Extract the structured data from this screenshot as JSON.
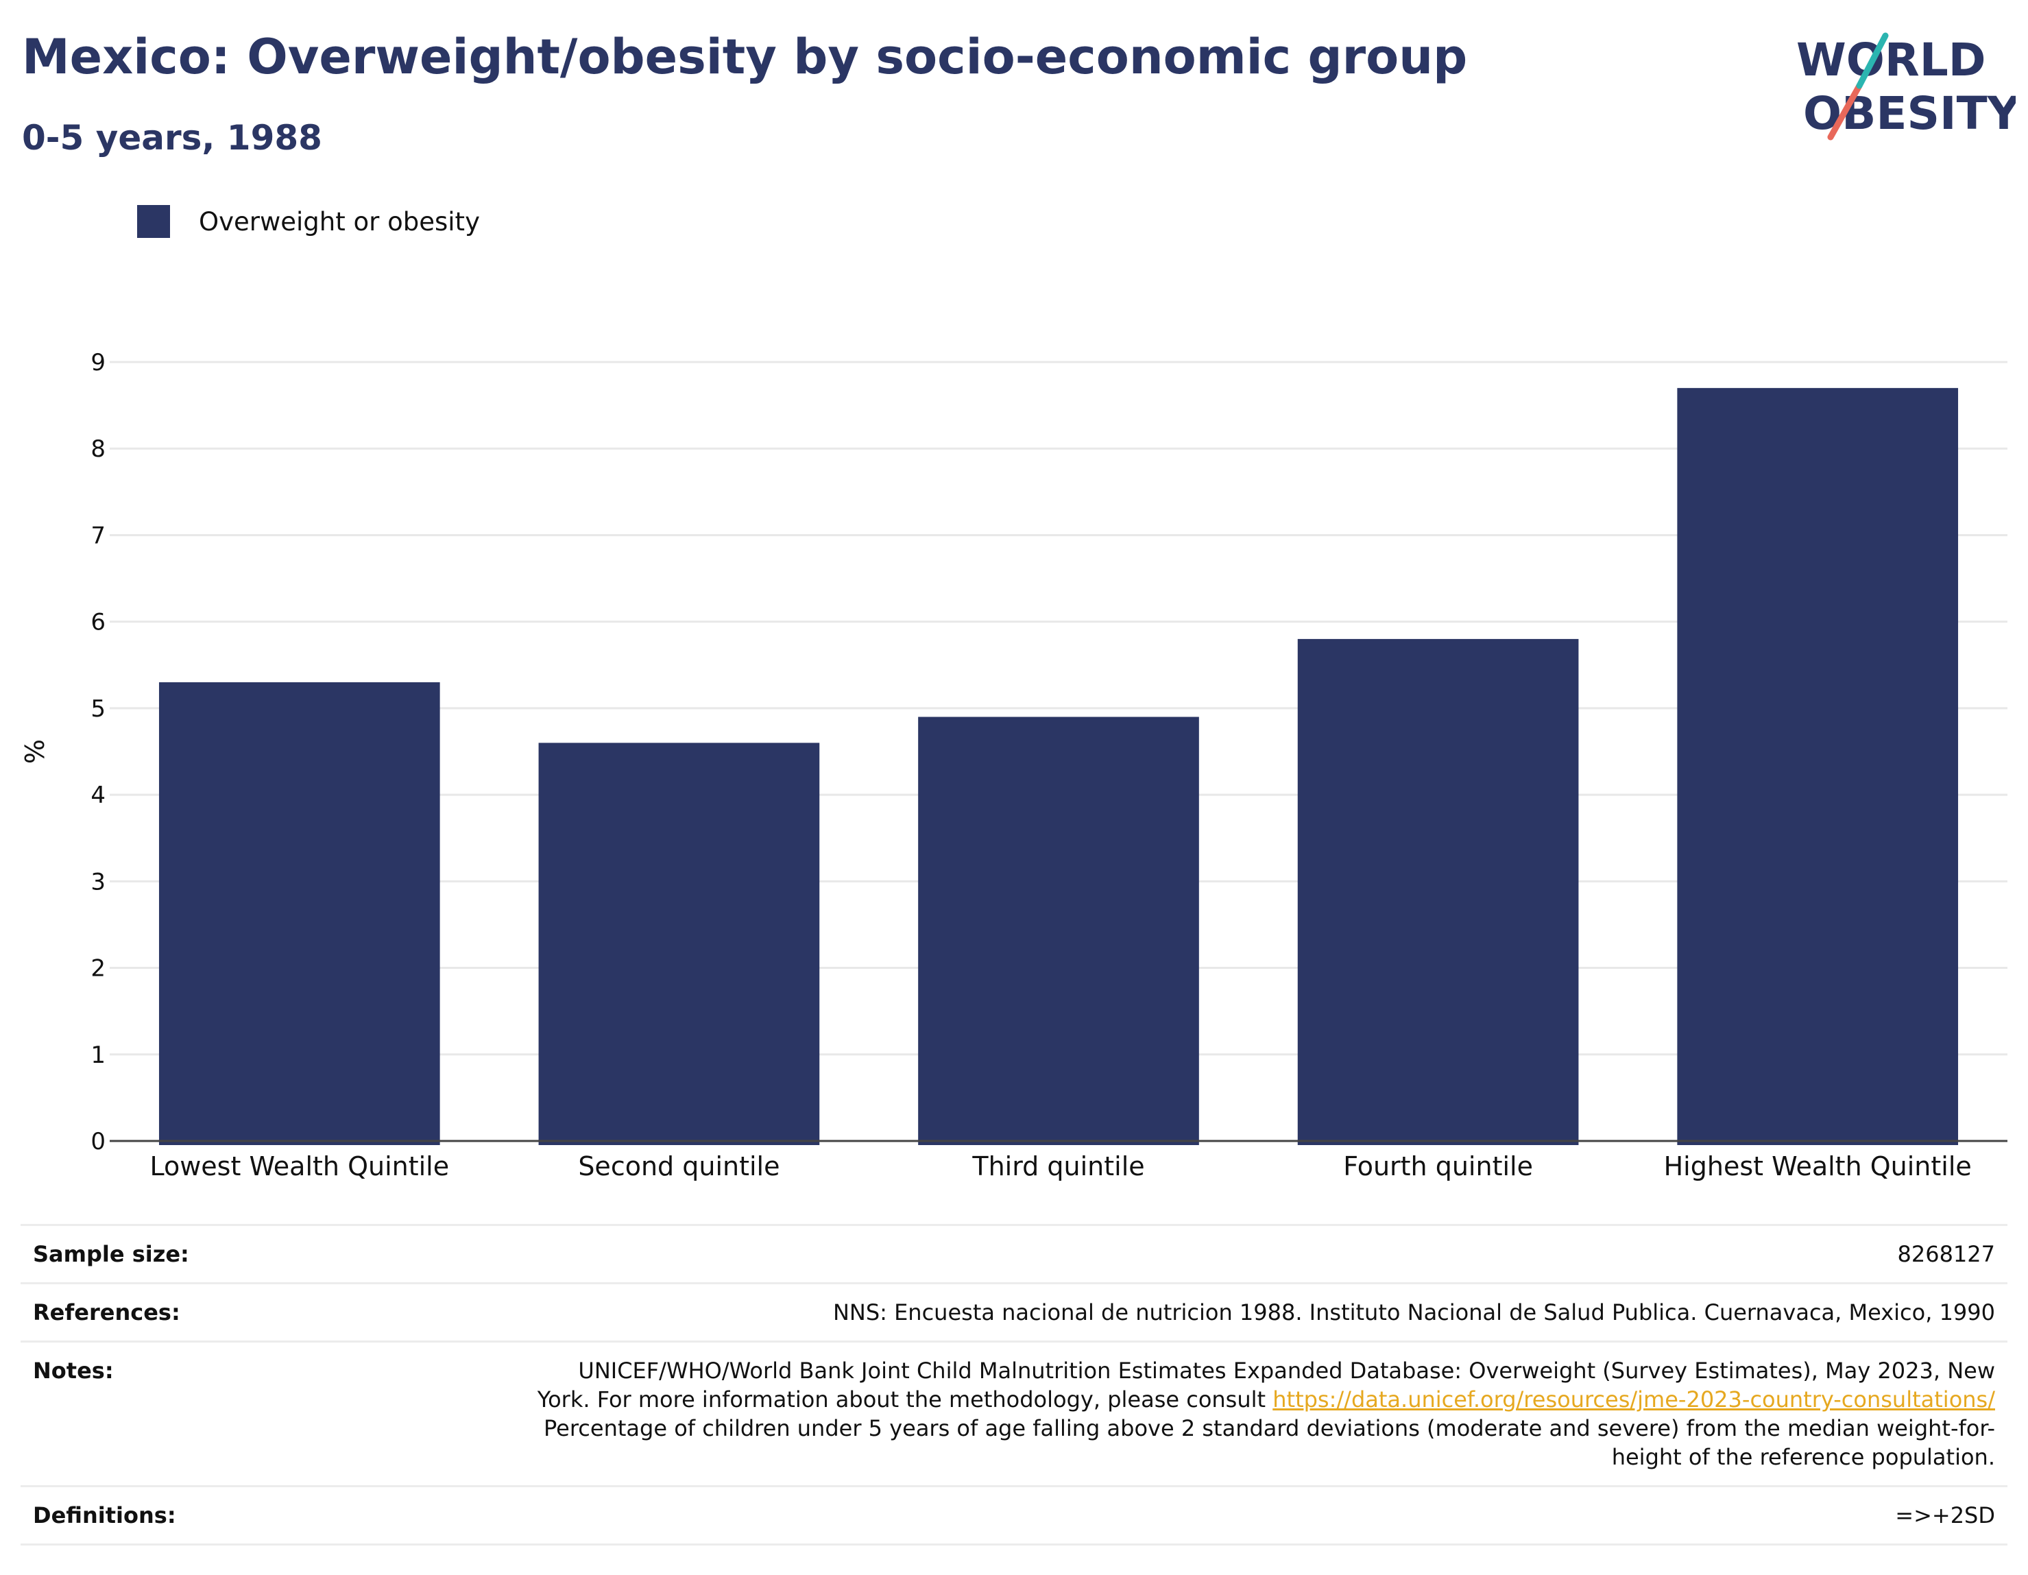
{
  "header": {
    "title": "Mexico: Overweight/obesity by socio-economic group",
    "subtitle": "0-5 years, 1988"
  },
  "logo": {
    "line1": "WORLD",
    "line2": "OBESITY",
    "colors": {
      "text": "#2b3664",
      "slash_top": "#2bb5b0",
      "slash_bottom": "#e8685a"
    }
  },
  "legend": {
    "label": "Overweight or obesity",
    "color": "#2b3664"
  },
  "chart_data": {
    "type": "bar",
    "categories": [
      "Lowest Wealth Quintile",
      "Second quintile",
      "Third quintile",
      "Fourth quintile",
      "Highest Wealth Quintile"
    ],
    "series": [
      {
        "name": "Overweight or obesity",
        "values": [
          5.3,
          4.6,
          4.9,
          5.8,
          8.7
        ],
        "color": "#2b3664"
      }
    ],
    "ylabel": "%",
    "ylim": [
      0,
      9
    ],
    "yticks": [
      0,
      1,
      2,
      3,
      4,
      5,
      6,
      7,
      8,
      9
    ],
    "grid": true,
    "legend_position": "top-left"
  },
  "info": {
    "sample_size_label": "Sample size:",
    "sample_size_value": "8268127",
    "references_label": "References:",
    "references_value": "NNS: Encuesta nacional de nutricion 1988. Instituto Nacional de Salud Publica. Cuernavaca, Mexico, 1990",
    "notes_label": "Notes:",
    "notes_text1": "UNICEF/WHO/World Bank Joint Child Malnutrition Estimates Expanded Database: Overweight (Survey Estimates), May 2023, New York. For more information about the methodology, please consult ",
    "notes_link": "https://data.unicef.org/resources/jme-2023-country-consultations/",
    "notes_text2": "Percentage of children under 5 years of age falling above 2 standard deviations (moderate and severe) from the median weight-for-height of the reference population.",
    "definitions_label": "Definitions:",
    "definitions_value": "=>+2SD"
  }
}
